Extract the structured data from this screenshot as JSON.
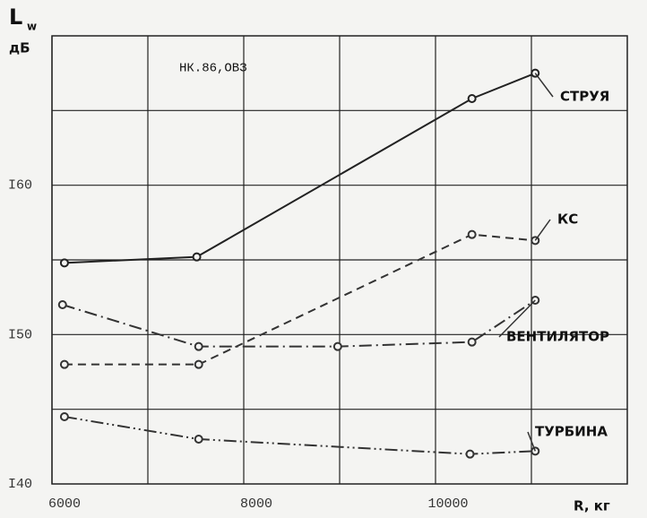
{
  "chart_data": {
    "type": "line",
    "annotation": "НК.86,ОВЗ",
    "y_label": "L",
    "y_label_sub": "w",
    "y_unit": "дБ",
    "x_label": "R, кг",
    "xlim": [
      6000,
      12000
    ],
    "ylim": [
      140,
      170
    ],
    "xticks": [
      6000,
      8000,
      10000
    ],
    "yticks": [
      {
        "value": 140,
        "label": "I40"
      },
      {
        "value": 150,
        "label": "I50"
      },
      {
        "value": 160,
        "label": "I60"
      }
    ],
    "xgrid": [
      6000,
      7000,
      8000,
      9000,
      10000,
      11000
    ],
    "ygrid": [
      145,
      150,
      155,
      160,
      165
    ],
    "grid": true,
    "series": [
      {
        "name": "СТРУЯ",
        "color": "#222",
        "dash": "none",
        "x": [
          6130,
          7510,
          10380,
          11040
        ],
        "values": [
          154.8,
          155.2,
          165.8,
          167.5
        ]
      },
      {
        "name": "КС",
        "color": "#333",
        "dash": "9 6",
        "x": [
          6130,
          7530,
          10380,
          11040
        ],
        "values": [
          148.0,
          148.0,
          156.7,
          156.3
        ]
      },
      {
        "name": "ВЕНТИЛЯТОР",
        "color": "#333",
        "dash": "14 5 2 5",
        "x": [
          6110,
          7530,
          8980,
          10380,
          11040
        ],
        "values": [
          152.0,
          149.2,
          149.2,
          149.5,
          152.3
        ]
      },
      {
        "name": "ТУРБИНА",
        "color": "#333",
        "dash": "14 4 2 4 2 4",
        "x": [
          6130,
          7530,
          10360,
          11040
        ],
        "values": [
          144.5,
          143.0,
          142.0,
          142.2
        ]
      }
    ]
  }
}
